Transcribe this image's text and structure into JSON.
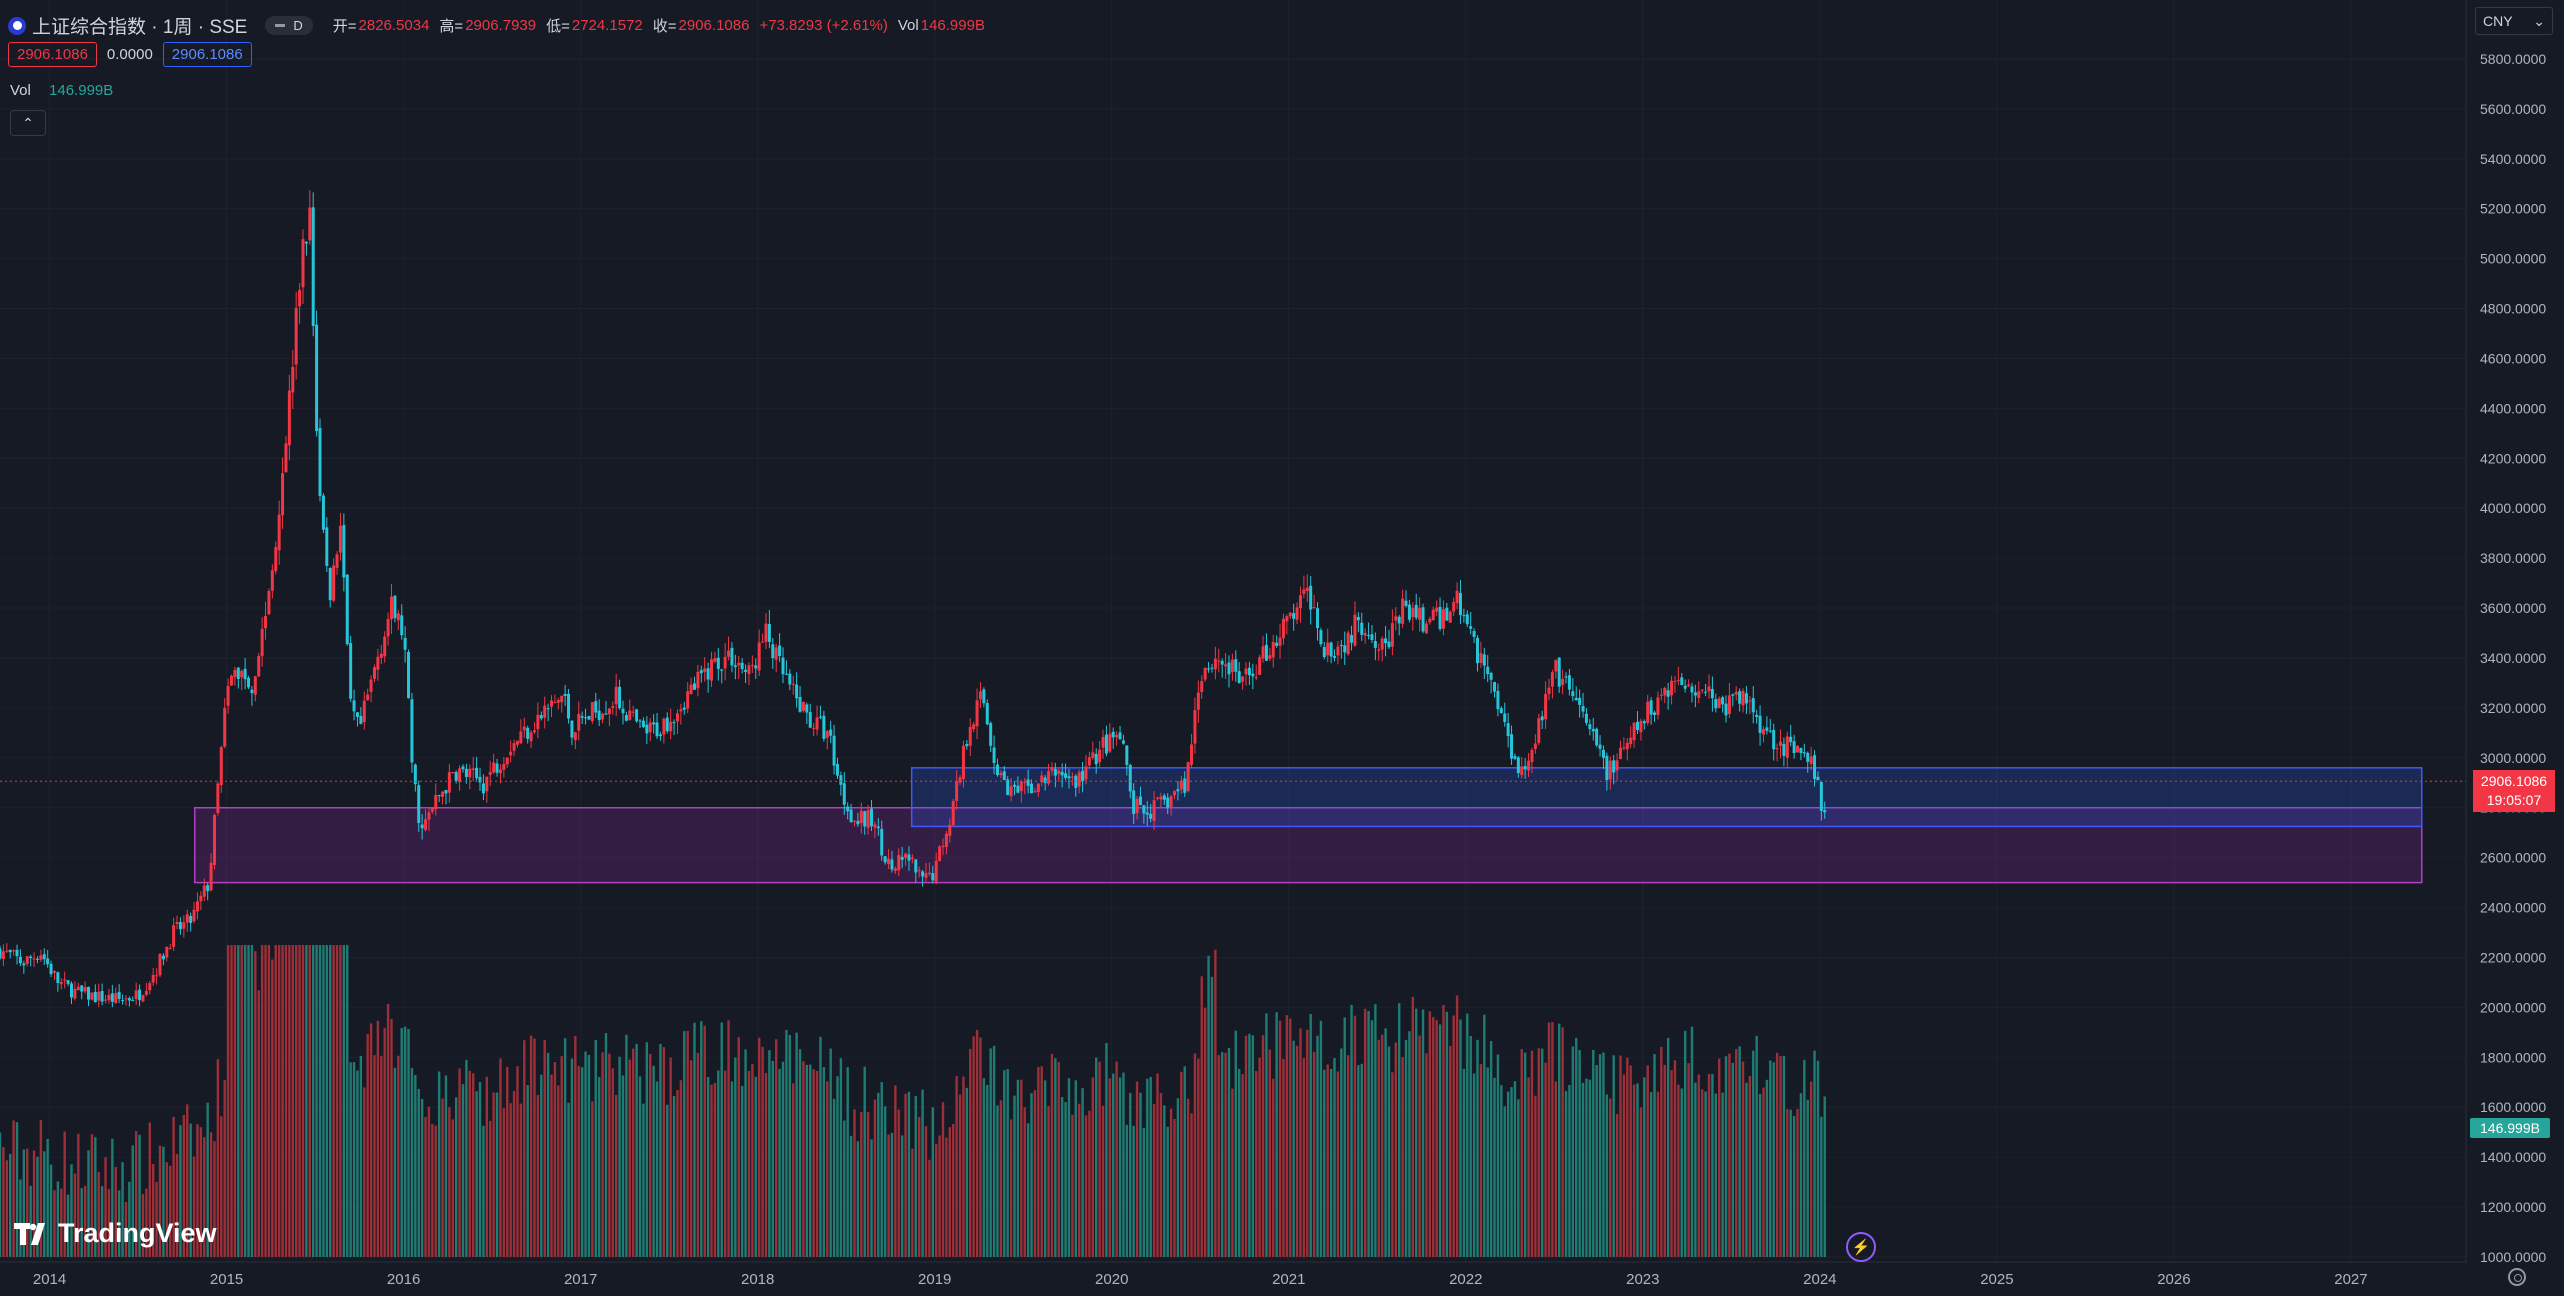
{
  "header": {
    "symbol_title": "上证综合指数 · 1周 · SSE",
    "session_badge": "D",
    "open_label": "开=",
    "open_value": "2826.5034",
    "high_label": "高=",
    "high_value": "2906.7939",
    "low_label": "低=",
    "low_value": "2724.1572",
    "close_label": "收=",
    "close_value": "2906.1086",
    "change_value": "+73.8293 (+2.61%)",
    "vol_label": "Vol",
    "vol_value": "146.999B"
  },
  "indicator_row": {
    "value_left": "2906.1086",
    "value_mid": "0.0000",
    "value_right": "2906.1086"
  },
  "volume_legend": {
    "label": "Vol",
    "value": "146.999B"
  },
  "collapse_button": "⌃",
  "currency": {
    "label": "CNY",
    "chevron": "⌄"
  },
  "price_tag": {
    "price": "2906.1086",
    "countdown": "19:05:07"
  },
  "volume_tag": "146.999B",
  "logo_text": "TradingView",
  "colors": {
    "background": "#161a25",
    "up": "#f23645",
    "down": "#26c6da",
    "vol_up": "#9c2f38",
    "vol_down": "#1f7c73",
    "zone_magenta_border": "#b23fc4",
    "zone_blue_border": "#3d5afe"
  },
  "chart_data": {
    "type": "candlestick",
    "title": "上证综合指数 · 1周 · SSE",
    "xlabel": "",
    "ylabel": "",
    "ylim": [
      1000,
      5900
    ],
    "y_ticks": [
      "5800.0000",
      "5600.0000",
      "5400.0000",
      "5200.0000",
      "5000.0000",
      "4800.0000",
      "4600.0000",
      "4400.0000",
      "4200.0000",
      "4000.0000",
      "3800.0000",
      "3600.0000",
      "3400.0000",
      "3200.0000",
      "3000.0000",
      "2800.0000",
      "2600.0000",
      "2400.0000",
      "2200.0000",
      "2000.0000",
      "1800.0000",
      "1600.0000",
      "1400.0000",
      "1200.0000",
      "1000.0000"
    ],
    "x_ticks": [
      {
        "label": "2014",
        "t": 2014.0
      },
      {
        "label": "2015",
        "t": 2015.0
      },
      {
        "label": "2016",
        "t": 2016.0
      },
      {
        "label": "2017",
        "t": 2017.0
      },
      {
        "label": "2018",
        "t": 2018.0
      },
      {
        "label": "2019",
        "t": 2019.0
      },
      {
        "label": "2020",
        "t": 2020.0
      },
      {
        "label": "2021",
        "t": 2021.0
      },
      {
        "label": "2022",
        "t": 2022.0
      },
      {
        "label": "2023",
        "t": 2023.0
      },
      {
        "label": "2024",
        "t": 2024.0
      },
      {
        "label": "2025",
        "t": 2025.0
      },
      {
        "label": "2026",
        "t": 2026.0
      },
      {
        "label": "2027",
        "t": 2027.0
      }
    ],
    "xlim": [
      2013.72,
      2027.65
    ],
    "start": 2013.72,
    "end": 2024.04,
    "close_anchors": [
      [
        2013.72,
        2230
      ],
      [
        2013.85,
        2180
      ],
      [
        2013.95,
        2220
      ],
      [
        2014.05,
        2100
      ],
      [
        2014.15,
        2060
      ],
      [
        2014.28,
        2040
      ],
      [
        2014.4,
        2030
      ],
      [
        2014.5,
        2050
      ],
      [
        2014.6,
        2150
      ],
      [
        2014.7,
        2300
      ],
      [
        2014.8,
        2350
      ],
      [
        2014.9,
        2500
      ],
      [
        2015.0,
        3250
      ],
      [
        2015.05,
        3350
      ],
      [
        2015.15,
        3300
      ],
      [
        2015.25,
        3700
      ],
      [
        2015.35,
        4400
      ],
      [
        2015.43,
        5050
      ],
      [
        2015.47,
        5150
      ],
      [
        2015.52,
        4100
      ],
      [
        2015.58,
        3650
      ],
      [
        2015.65,
        3950
      ],
      [
        2015.7,
        3200
      ],
      [
        2015.75,
        3100
      ],
      [
        2015.85,
        3400
      ],
      [
        2015.93,
        3600
      ],
      [
        2016.0,
        3500
      ],
      [
        2016.05,
        2950
      ],
      [
        2016.1,
        2700
      ],
      [
        2016.2,
        2850
      ],
      [
        2016.3,
        2950
      ],
      [
        2016.45,
        2900
      ],
      [
        2016.6,
        3050
      ],
      [
        2016.75,
        3150
      ],
      [
        2016.9,
        3250
      ],
      [
        2016.95,
        3120
      ],
      [
        2017.05,
        3170
      ],
      [
        2017.2,
        3240
      ],
      [
        2017.35,
        3100
      ],
      [
        2017.45,
        3120
      ],
      [
        2017.6,
        3250
      ],
      [
        2017.75,
        3380
      ],
      [
        2017.85,
        3410
      ],
      [
        2017.95,
        3330
      ],
      [
        2018.05,
        3500
      ],
      [
        2018.1,
        3400
      ],
      [
        2018.2,
        3250
      ],
      [
        2018.3,
        3150
      ],
      [
        2018.4,
        3100
      ],
      [
        2018.48,
        2850
      ],
      [
        2018.55,
        2750
      ],
      [
        2018.65,
        2750
      ],
      [
        2018.75,
        2550
      ],
      [
        2018.85,
        2600
      ],
      [
        2018.93,
        2500
      ],
      [
        2019.0,
        2550
      ],
      [
        2019.1,
        2800
      ],
      [
        2019.2,
        3150
      ],
      [
        2019.27,
        3250
      ],
      [
        2019.35,
        2950
      ],
      [
        2019.45,
        2850
      ],
      [
        2019.6,
        2900
      ],
      [
        2019.7,
        2950
      ],
      [
        2019.8,
        2900
      ],
      [
        2019.95,
        3050
      ],
      [
        2020.05,
        3080
      ],
      [
        2020.12,
        2800
      ],
      [
        2020.2,
        2780
      ],
      [
        2020.3,
        2820
      ],
      [
        2020.42,
        2900
      ],
      [
        2020.5,
        3350
      ],
      [
        2020.6,
        3400
      ],
      [
        2020.75,
        3300
      ],
      [
        2020.9,
        3450
      ],
      [
        2021.05,
        3600
      ],
      [
        2021.12,
        3650
      ],
      [
        2021.2,
        3450
      ],
      [
        2021.3,
        3450
      ],
      [
        2021.4,
        3550
      ],
      [
        2021.55,
        3450
      ],
      [
        2021.65,
        3600
      ],
      [
        2021.75,
        3550
      ],
      [
        2021.85,
        3550
      ],
      [
        2021.95,
        3640
      ],
      [
        2022.05,
        3450
      ],
      [
        2022.15,
        3300
      ],
      [
        2022.25,
        3050
      ],
      [
        2022.32,
        2950
      ],
      [
        2022.4,
        3100
      ],
      [
        2022.5,
        3350
      ],
      [
        2022.6,
        3250
      ],
      [
        2022.7,
        3100
      ],
      [
        2022.8,
        2950
      ],
      [
        2022.88,
        3000
      ],
      [
        2022.95,
        3100
      ],
      [
        2023.05,
        3200
      ],
      [
        2023.15,
        3300
      ],
      [
        2023.25,
        3300
      ],
      [
        2023.35,
        3280
      ],
      [
        2023.45,
        3200
      ],
      [
        2023.55,
        3250
      ],
      [
        2023.62,
        3200
      ],
      [
        2023.7,
        3100
      ],
      [
        2023.8,
        3050
      ],
      [
        2023.9,
        3000
      ],
      [
        2023.97,
        2950
      ],
      [
        2024.02,
        2750
      ],
      [
        2024.04,
        2906
      ]
    ],
    "zones": [
      {
        "name": "magenta-zone",
        "t0": 2014.82,
        "t1": 2027.4,
        "y_low": 2500,
        "y_high": 2800
      },
      {
        "name": "blue-zone",
        "t0": 2018.87,
        "t1": 2027.4,
        "y_low": 2725,
        "y_high": 2960
      }
    ],
    "last_close": 2906.1086
  }
}
